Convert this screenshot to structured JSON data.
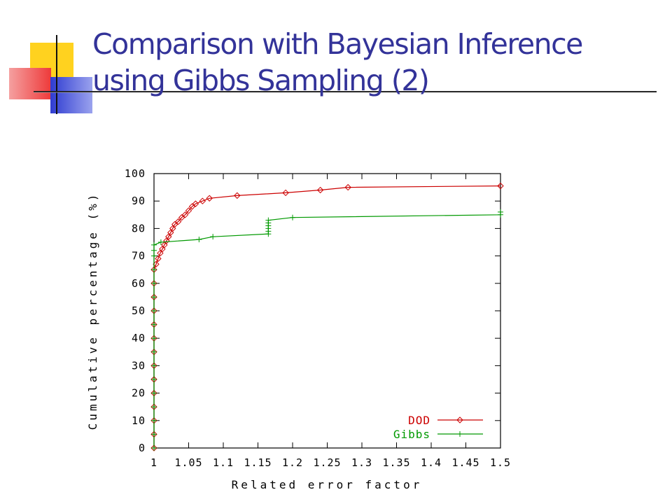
{
  "slide": {
    "title_line1": "Comparison with Bayesian Inference",
    "title_line2": "using Gibbs Sampling  (2)",
    "title_color": "#333399"
  },
  "chart_data": {
    "type": "line",
    "xlabel": "Related error factor",
    "ylabel": "Cumulative percentage (%)",
    "xlim": [
      1,
      1.5
    ],
    "ylim": [
      0,
      100
    ],
    "x_ticks": [
      "1",
      "1.05",
      "1.1",
      "1.15",
      "1.2",
      "1.25",
      "1.3",
      "1.35",
      "1.4",
      "1.45",
      "1.5"
    ],
    "y_ticks": [
      "0",
      "10",
      "20",
      "30",
      "40",
      "50",
      "60",
      "70",
      "80",
      "90",
      "100"
    ],
    "legend_position": "bottom-right",
    "grid": false,
    "series": [
      {
        "name": "DOD",
        "color": "#cc0000",
        "marker": "diamond",
        "points": [
          [
            1.0,
            0
          ],
          [
            1.0,
            5
          ],
          [
            1.0,
            10
          ],
          [
            1.0,
            15
          ],
          [
            1.0,
            20
          ],
          [
            1.0,
            25
          ],
          [
            1.0,
            30
          ],
          [
            1.0,
            35
          ],
          [
            1.0,
            40
          ],
          [
            1.0,
            45
          ],
          [
            1.0,
            50
          ],
          [
            1.0,
            55
          ],
          [
            1.0,
            60
          ],
          [
            1.0,
            65
          ],
          [
            1.003,
            67
          ],
          [
            1.006,
            69
          ],
          [
            1.009,
            71
          ],
          [
            1.012,
            72.5
          ],
          [
            1.015,
            74
          ],
          [
            1.018,
            75.5
          ],
          [
            1.021,
            77
          ],
          [
            1.024,
            78.5
          ],
          [
            1.027,
            80
          ],
          [
            1.03,
            81.5
          ],
          [
            1.035,
            82.5
          ],
          [
            1.04,
            84
          ],
          [
            1.045,
            85
          ],
          [
            1.05,
            86.5
          ],
          [
            1.055,
            88
          ],
          [
            1.06,
            89
          ],
          [
            1.07,
            90
          ],
          [
            1.08,
            91
          ],
          [
            1.12,
            92
          ],
          [
            1.19,
            93
          ],
          [
            1.24,
            94
          ],
          [
            1.28,
            95
          ],
          [
            1.5,
            95.5
          ]
        ]
      },
      {
        "name": "Gibbs",
        "color": "#009900",
        "marker": "plus",
        "points": [
          [
            1.0,
            0
          ],
          [
            1.0,
            5
          ],
          [
            1.0,
            10
          ],
          [
            1.0,
            15
          ],
          [
            1.0,
            20
          ],
          [
            1.0,
            25
          ],
          [
            1.0,
            30
          ],
          [
            1.0,
            35
          ],
          [
            1.0,
            40
          ],
          [
            1.0,
            45
          ],
          [
            1.0,
            50
          ],
          [
            1.0,
            55
          ],
          [
            1.0,
            60
          ],
          [
            1.0,
            65
          ],
          [
            1.0,
            70
          ],
          [
            1.0,
            72
          ],
          [
            1.0,
            74
          ],
          [
            1.01,
            75
          ],
          [
            1.065,
            76
          ],
          [
            1.085,
            77
          ],
          [
            1.165,
            78
          ],
          [
            1.165,
            79
          ],
          [
            1.165,
            80
          ],
          [
            1.165,
            81
          ],
          [
            1.165,
            82
          ],
          [
            1.165,
            83
          ],
          [
            1.2,
            84
          ],
          [
            1.5,
            85
          ],
          [
            1.5,
            86
          ]
        ]
      }
    ]
  }
}
